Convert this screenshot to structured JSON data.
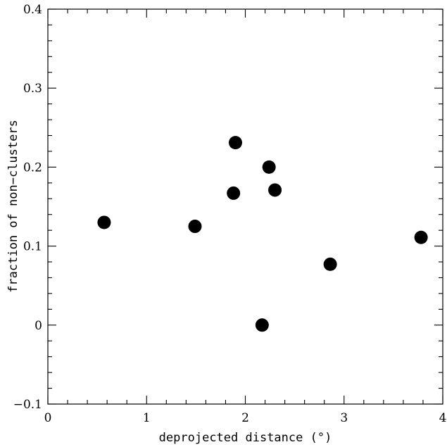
{
  "chart_data": {
    "type": "scatter",
    "title": "",
    "xlabel": "deprojected distance (°)",
    "ylabel": "fraction of non−clusters",
    "xlim": [
      0,
      4
    ],
    "ylim": [
      -0.1,
      0.4
    ],
    "x_ticks": [
      0,
      1,
      2,
      3,
      4
    ],
    "x_tick_labels": [
      "0",
      "1",
      "2",
      "3",
      "4"
    ],
    "x_minor_step": 0.2,
    "y_ticks": [
      -0.1,
      0,
      0.1,
      0.2,
      0.3,
      0.4
    ],
    "y_tick_labels": [
      "−0.1",
      "0",
      "0.1",
      "0.2",
      "0.3",
      "0.4"
    ],
    "y_minor_step": 0.02,
    "grid": false,
    "legend": "none",
    "marker_color": "#000000",
    "points": [
      {
        "x": 0.57,
        "y": 0.13
      },
      {
        "x": 1.49,
        "y": 0.125
      },
      {
        "x": 1.88,
        "y": 0.167
      },
      {
        "x": 1.9,
        "y": 0.231
      },
      {
        "x": 2.17,
        "y": 0.0
      },
      {
        "x": 2.24,
        "y": 0.2
      },
      {
        "x": 2.3,
        "y": 0.171
      },
      {
        "x": 2.86,
        "y": 0.077
      },
      {
        "x": 3.78,
        "y": 0.111
      }
    ]
  }
}
